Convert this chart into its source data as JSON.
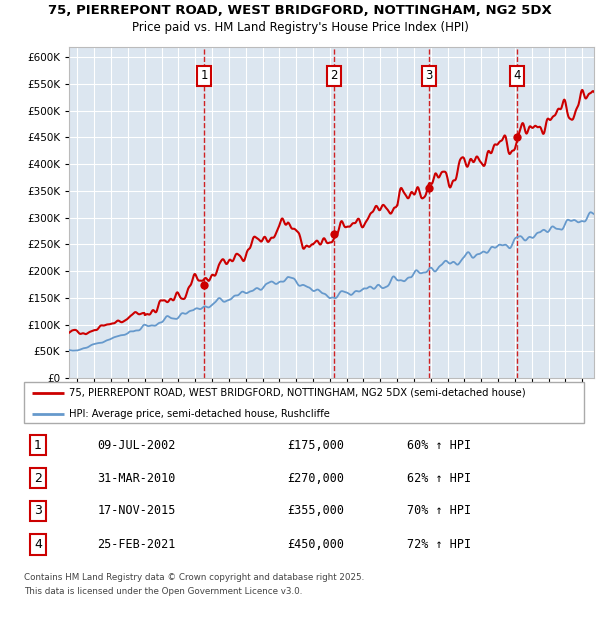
{
  "title1": "75, PIERREPONT ROAD, WEST BRIDGFORD, NOTTINGHAM, NG2 5DX",
  "title2": "Price paid vs. HM Land Registry's House Price Index (HPI)",
  "legend_line1": "75, PIERREPONT ROAD, WEST BRIDGFORD, NOTTINGHAM, NG2 5DX (semi-detached house)",
  "legend_line2": "HPI: Average price, semi-detached house, Rushcliffe",
  "transactions": [
    {
      "num": "1",
      "date": "09-JUL-2002",
      "price": "£175,000",
      "hpi_pct": "60% ↑ HPI",
      "year": 2002.52,
      "price_val": 175000
    },
    {
      "num": "2",
      "date": "31-MAR-2010",
      "price": "£270,000",
      "hpi_pct": "62% ↑ HPI",
      "year": 2010.25,
      "price_val": 270000
    },
    {
      "num": "3",
      "date": "17-NOV-2015",
      "price": "£355,000",
      "hpi_pct": "70% ↑ HPI",
      "year": 2015.88,
      "price_val": 355000
    },
    {
      "num": "4",
      "date": "25-FEB-2021",
      "price": "£450,000",
      "hpi_pct": "72% ↑ HPI",
      "year": 2021.15,
      "price_val": 450000
    }
  ],
  "footer1": "Contains HM Land Registry data © Crown copyright and database right 2025.",
  "footer2": "This data is licensed under the Open Government Licence v3.0.",
  "red_color": "#cc0000",
  "blue_color": "#6699cc",
  "bg_color": "#dce6f0",
  "ylim": [
    0,
    620000
  ],
  "xlim_start": 1994.5,
  "xlim_end": 2025.7
}
